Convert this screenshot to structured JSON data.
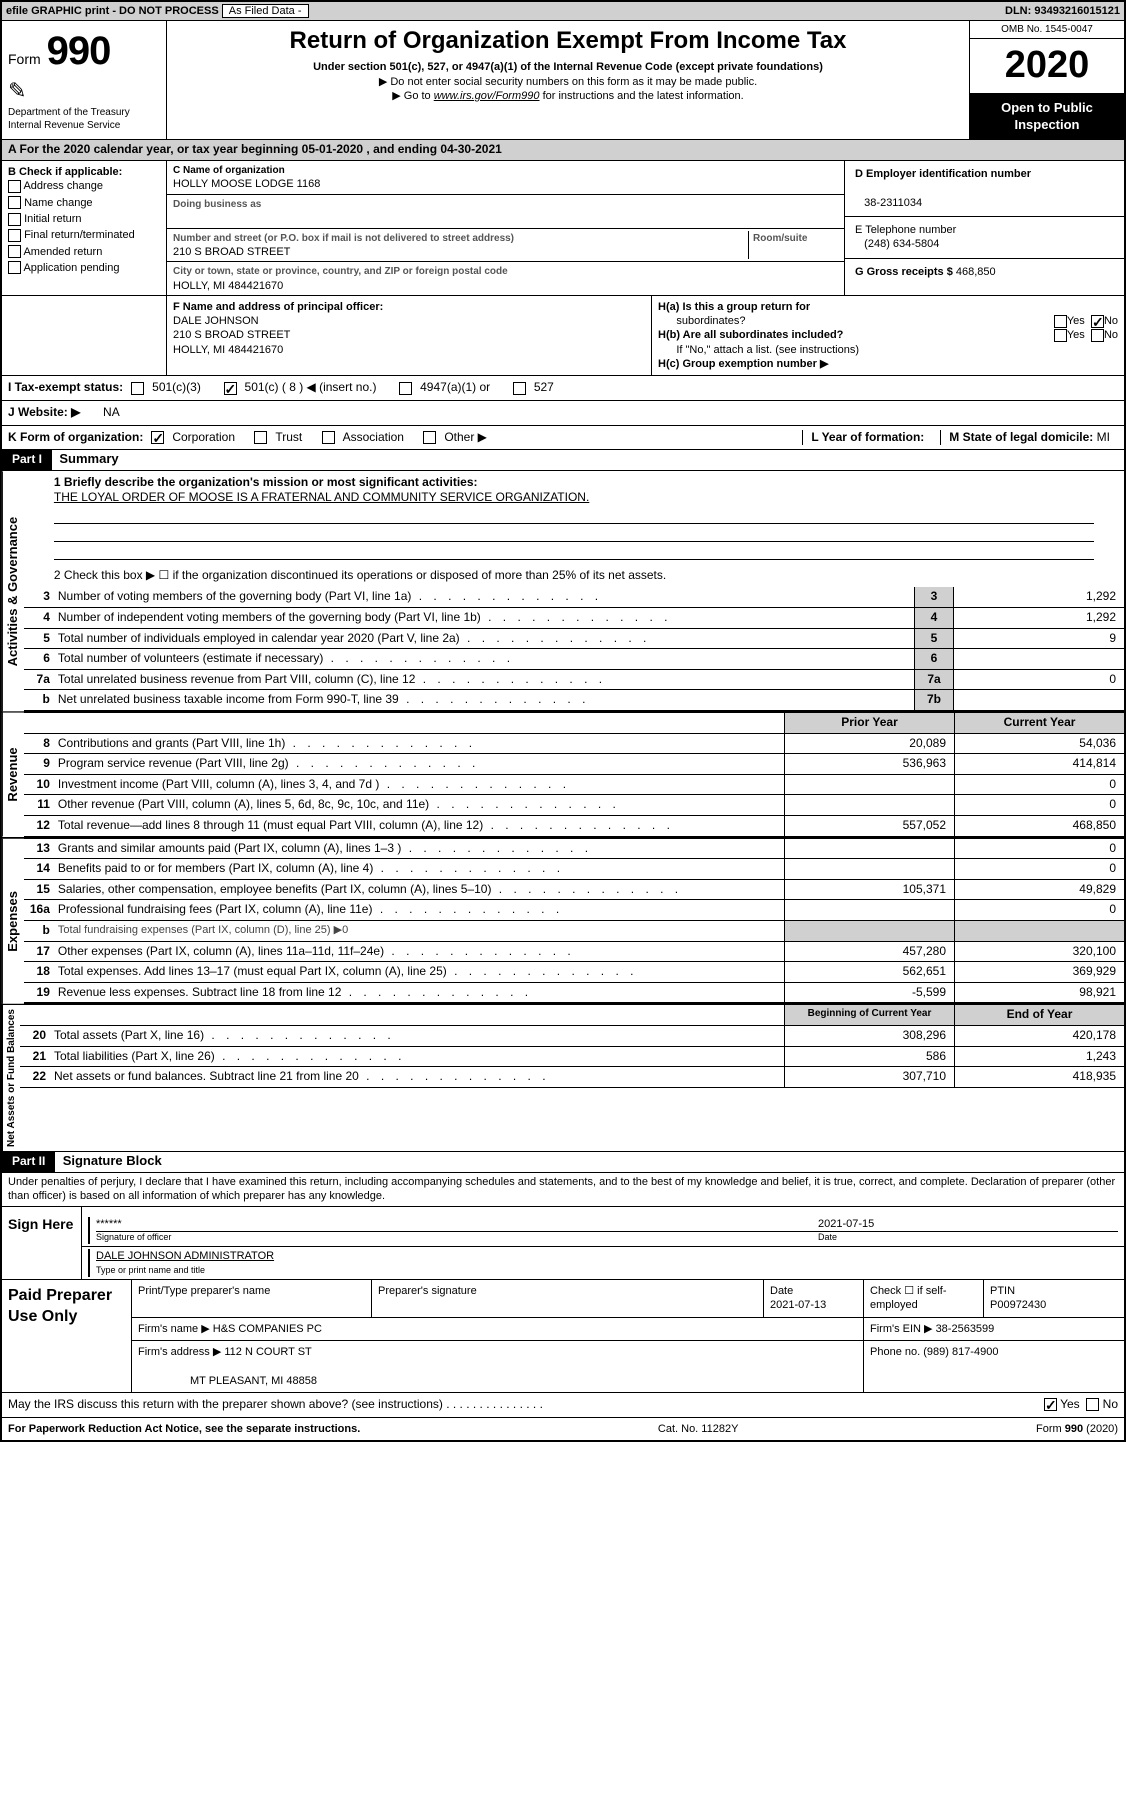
{
  "topbar": {
    "efile": "efile GRAPHIC print - DO NOT PROCESS",
    "asfiled": "As Filed Data -",
    "dln_label": "DLN:",
    "dln": "93493216015121"
  },
  "header": {
    "form_label": "Form",
    "form_no": "990",
    "dept": "Department of the Treasury\nInternal Revenue Service",
    "title": "Return of Organization Exempt From Income Tax",
    "sub1": "Under section 501(c), 527, or 4947(a)(1) of the Internal Revenue Code (except private foundations)",
    "sub2": "▶ Do not enter social security numbers on this form as it may be made public.",
    "sub3_pre": "▶ Go to ",
    "sub3_link": "www.irs.gov/Form990",
    "sub3_post": " for instructions and the latest information.",
    "omb": "OMB No. 1545-0047",
    "year": "2020",
    "inspect1": "Open to Public",
    "inspect2": "Inspection"
  },
  "rowA": {
    "prefix": "A   For the 2020 calendar year, or tax year beginning ",
    "begin": "05-01-2020",
    "mid": "   , and ending ",
    "end": "04-30-2021"
  },
  "sectionB": {
    "title": "B Check if applicable:",
    "opts": [
      "Address change",
      "Name change",
      "Initial return",
      "Final return/terminated",
      "Amended return",
      "Application pending"
    ]
  },
  "sectionC": {
    "name_label": "C Name of organization",
    "name": "HOLLY MOOSE LODGE 1168",
    "dba_label": "Doing business as",
    "dba": "",
    "addr_label": "Number and street (or P.O. box if mail is not delivered to street address)",
    "room_label": "Room/suite",
    "addr": "210 S BROAD STREET",
    "city_label": "City or town, state or province, country, and ZIP or foreign postal code",
    "city": "HOLLY, MI  484421670"
  },
  "sectionD": {
    "ein_label": "D Employer identification number",
    "ein": "38-2311034",
    "phone_label": "E Telephone number",
    "phone": "(248) 634-5804",
    "gross_label": "G Gross receipts $",
    "gross": "468,850"
  },
  "sectionF": {
    "label": "F  Name and address of principal officer:",
    "name": "DALE JOHNSON",
    "addr1": "210 S BROAD STREET",
    "addr2": "HOLLY, MI  484421670"
  },
  "sectionH": {
    "ha_label": "H(a)  Is this a group return for",
    "ha_sub": "subordinates?",
    "hb_label": "H(b)  Are all subordinates included?",
    "hb_note": "If \"No,\" attach a list. (see instructions)",
    "hc_label": "H(c)  Group exemption number ▶",
    "yes": "Yes",
    "no": "No"
  },
  "rowI": {
    "label": "I   Tax-exempt status:",
    "opts": [
      "501(c)(3)",
      "501(c) ( 8 ) ◀ (insert no.)",
      "4947(a)(1) or",
      "527"
    ],
    "checked": 1
  },
  "rowJ": {
    "label": "J   Website: ▶",
    "value": "NA"
  },
  "rowK": {
    "label": "K Form of organization:",
    "opts": [
      "Corporation",
      "Trust",
      "Association",
      "Other ▶"
    ],
    "checked": 0,
    "l_label": "L Year of formation:",
    "l_val": "",
    "m_label": "M State of legal domicile:",
    "m_val": "MI"
  },
  "part1": {
    "hdr": "Part I",
    "title": "Summary",
    "vtab1": "Activities & Governance",
    "vtab2": "Revenue",
    "vtab3": "Expenses",
    "vtab4": "Net Assets or Fund Balances",
    "line1_label": "1  Briefly describe the organization's mission or most significant activities:",
    "line1_text": "THE LOYAL ORDER OF MOOSE IS A FRATERNAL AND COMMUNITY SERVICE ORGANIZATION.",
    "line2": "2   Check this box ▶ ☐  if the organization discontinued its operations or disposed of more than 25% of its net assets.",
    "ag_lines": [
      {
        "n": "3",
        "t": "Number of voting members of the governing body (Part VI, line 1a)",
        "k": "3",
        "v": "1,292"
      },
      {
        "n": "4",
        "t": "Number of independent voting members of the governing body (Part VI, line 1b)",
        "k": "4",
        "v": "1,292"
      },
      {
        "n": "5",
        "t": "Total number of individuals employed in calendar year 2020 (Part V, line 2a)",
        "k": "5",
        "v": "9"
      },
      {
        "n": "6",
        "t": "Total number of volunteers (estimate if necessary)",
        "k": "6",
        "v": ""
      },
      {
        "n": "7a",
        "t": "Total unrelated business revenue from Part VIII, column (C), line 12",
        "k": "7a",
        "v": "0"
      },
      {
        "n": "b",
        "t": "Net unrelated business taxable income from Form 990-T, line 39",
        "k": "7b",
        "v": ""
      }
    ],
    "prior_hdr": "Prior Year",
    "curr_hdr": "Current Year",
    "rev_lines": [
      {
        "n": "8",
        "t": "Contributions and grants (Part VIII, line 1h)",
        "p": "20,089",
        "c": "54,036"
      },
      {
        "n": "9",
        "t": "Program service revenue (Part VIII, line 2g)",
        "p": "536,963",
        "c": "414,814"
      },
      {
        "n": "10",
        "t": "Investment income (Part VIII, column (A), lines 3, 4, and 7d )",
        "p": "",
        "c": "0"
      },
      {
        "n": "11",
        "t": "Other revenue (Part VIII, column (A), lines 5, 6d, 8c, 9c, 10c, and 11e)",
        "p": "",
        "c": "0"
      },
      {
        "n": "12",
        "t": "Total revenue—add lines 8 through 11 (must equal Part VIII, column (A), line 12)",
        "p": "557,052",
        "c": "468,850"
      }
    ],
    "exp_lines": [
      {
        "n": "13",
        "t": "Grants and similar amounts paid (Part IX, column (A), lines 1–3 )",
        "p": "",
        "c": "0"
      },
      {
        "n": "14",
        "t": "Benefits paid to or for members (Part IX, column (A), line 4)",
        "p": "",
        "c": "0"
      },
      {
        "n": "15",
        "t": "Salaries, other compensation, employee benefits (Part IX, column (A), lines 5–10)",
        "p": "105,371",
        "c": "49,829"
      },
      {
        "n": "16a",
        "t": "Professional fundraising fees (Part IX, column (A), line 11e)",
        "p": "",
        "c": "0"
      },
      {
        "n": "b",
        "t": "Total fundraising expenses (Part IX, column (D), line 25) ▶0",
        "p": null,
        "c": null
      },
      {
        "n": "17",
        "t": "Other expenses (Part IX, column (A), lines 11a–11d, 11f–24e)",
        "p": "457,280",
        "c": "320,100"
      },
      {
        "n": "18",
        "t": "Total expenses. Add lines 13–17 (must equal Part IX, column (A), line 25)",
        "p": "562,651",
        "c": "369,929"
      },
      {
        "n": "19",
        "t": "Revenue less expenses. Subtract line 18 from line 12",
        "p": "-5,599",
        "c": "98,921"
      }
    ],
    "na_hdr1": "Beginning of Current Year",
    "na_hdr2": "End of Year",
    "na_lines": [
      {
        "n": "20",
        "t": "Total assets (Part X, line 16)",
        "p": "308,296",
        "c": "420,178"
      },
      {
        "n": "21",
        "t": "Total liabilities (Part X, line 26)",
        "p": "586",
        "c": "1,243"
      },
      {
        "n": "22",
        "t": "Net assets or fund balances. Subtract line 21 from line 20",
        "p": "307,710",
        "c": "418,935"
      }
    ]
  },
  "part2": {
    "hdr": "Part II",
    "title": "Signature Block",
    "intro": "Under penalties of perjury, I declare that I have examined this return, including accompanying schedules and statements, and to the best of my knowledge and belief, it is true, correct, and complete. Declaration of preparer (other than officer) is based on all information of which preparer has any knowledge.",
    "sign_here": "Sign Here",
    "stars": "******",
    "sig_label": "Signature of officer",
    "sig_date": "2021-07-15",
    "date_label": "Date",
    "officer": "DALE JOHNSON  ADMINISTRATOR",
    "officer_label": "Type or print name and title",
    "paid": "Paid Preparer Use Only",
    "prep_name_label": "Print/Type preparer's name",
    "prep_sig_label": "Preparer's signature",
    "prep_date": "2021-07-13",
    "check_label": "Check ☐ if self-employed",
    "ptin_label": "PTIN",
    "ptin": "P00972430",
    "firm_name_label": "Firm's name   ▶",
    "firm_name": "H&S COMPANIES PC",
    "firm_ein_label": "Firm's EIN ▶",
    "firm_ein": "38-2563599",
    "firm_addr_label": "Firm's address ▶",
    "firm_addr1": "112 N COURT ST",
    "firm_addr2": "MT PLEASANT, MI  48858",
    "firm_phone_label": "Phone no.",
    "firm_phone": "(989) 817-4900",
    "may_irs": "May the IRS discuss this return with the preparer shown above? (see instructions)"
  },
  "footer": {
    "pra": "For Paperwork Reduction Act Notice, see the separate instructions.",
    "cat": "Cat. No. 11282Y",
    "form": "Form 990 (2020)"
  }
}
